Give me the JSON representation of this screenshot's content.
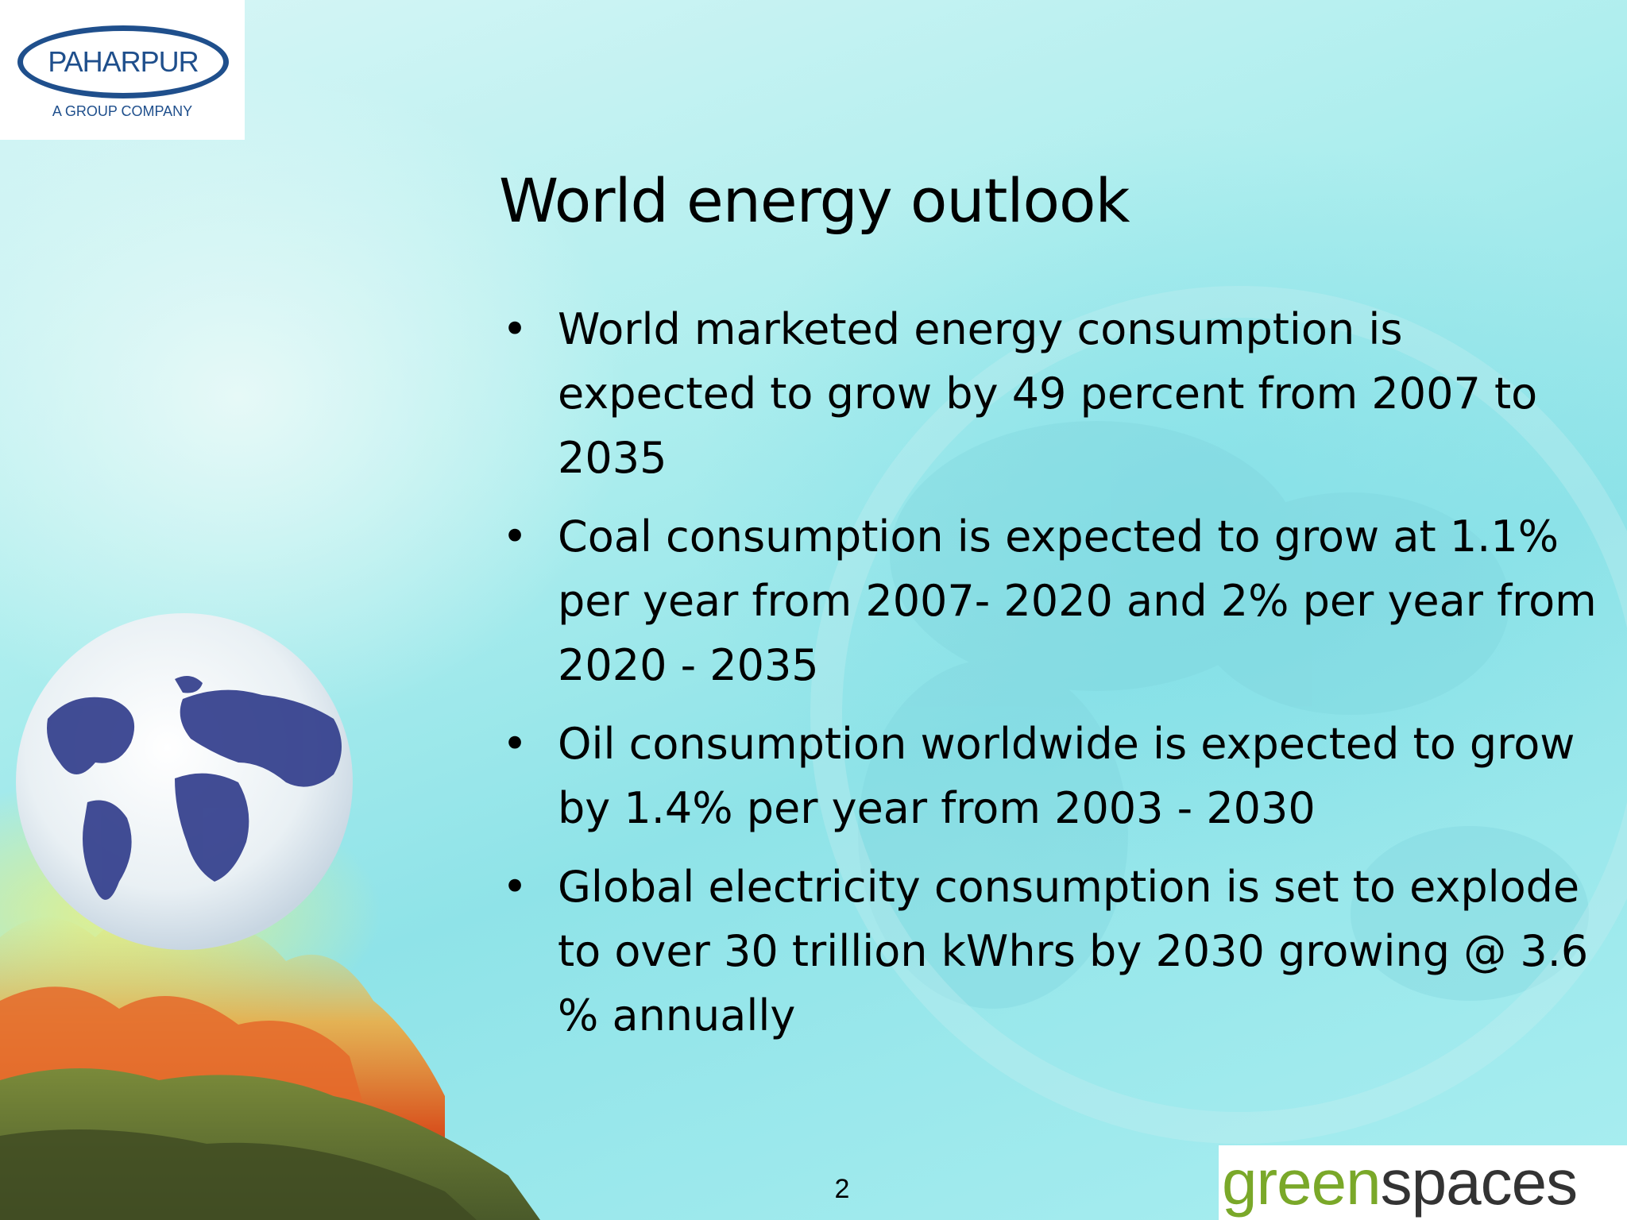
{
  "logo": {
    "name": "PAHARPUR",
    "tagline": "A GROUP COMPANY"
  },
  "slide": {
    "title": "World energy outlook",
    "bullets": [
      "World marketed energy consumption is expected to grow by 49 percent from 2007 to 2035",
      "Coal consumption is expected to grow at 1.1% per year from 2007- 2020 and 2% per year from 2020 - 2035",
      "Oil consumption worldwide is expected to grow by 1.4% per year from 2003 - 2030",
      "Global electricity consumption is set to explode to over 30 trillion kWhrs by 2030 growing @ 3.6 % annually"
    ],
    "bullet_glyph": "•",
    "page_number": "2"
  },
  "brand": {
    "part1": "green",
    "part2": "spaces",
    "color_green": "#7aa829",
    "color_dark": "#333333"
  },
  "colors": {
    "logo_blue": "#1f4f8c",
    "background_teal": "#8fe3e8"
  },
  "icons": {
    "globe": "globe-image",
    "fire": "forest-fire-image"
  }
}
